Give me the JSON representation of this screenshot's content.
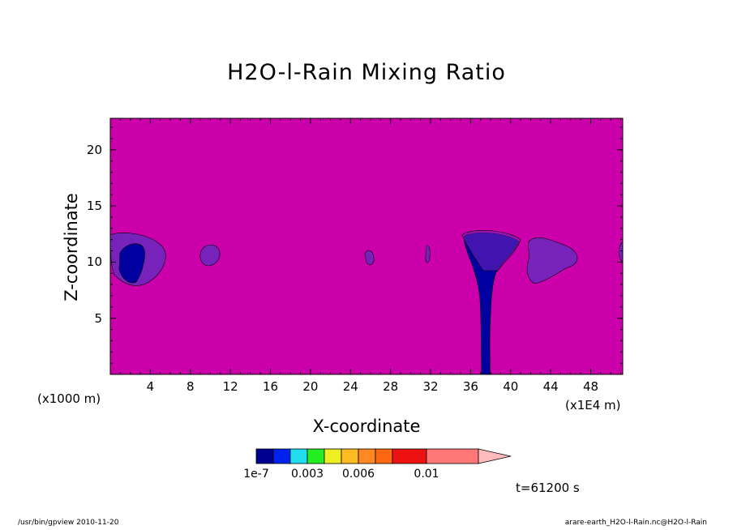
{
  "chart_data": {
    "type": "contour",
    "title": "H2O-l-Rain Mixing Ratio",
    "xlabel": "X-coordinate",
    "ylabel": "Z-coordinate",
    "x_unit_label": "(x1000 m)",
    "x_unit_label_right": "(x1E4 m)",
    "xlim": [
      0,
      51.2
    ],
    "ylim": [
      0,
      22.8
    ],
    "x_ticks": [
      "4",
      "8",
      "12",
      "16",
      "20",
      "24",
      "28",
      "32",
      "36",
      "40",
      "44",
      "48"
    ],
    "y_ticks": [
      "5",
      "10",
      "15",
      "20"
    ],
    "background_color": "#cc00aa",
    "colorbar": {
      "colors": [
        "#000090",
        "#0022ee",
        "#22ddee",
        "#22ee22",
        "#eeee22",
        "#ffbb22",
        "#ff8822",
        "#ff6611",
        "#ee1111",
        "#ff7777",
        "#ffbbbb"
      ],
      "labels": [
        "1e-7",
        "0.003",
        "0.006",
        "0.01"
      ]
    },
    "time_label": "t=61200 s",
    "features": [
      {
        "name": "purple-blob-left",
        "center_x": 2.5,
        "center_z": 10.3,
        "level": "low",
        "color": "#7722bb"
      },
      {
        "name": "blue-core-left",
        "center_x": 2.0,
        "center_z": 10.0,
        "level": "1e-7",
        "color": "#0000a0"
      },
      {
        "name": "purple-blob-10km",
        "center_x": 10.0,
        "center_z": 10.7,
        "level": "low",
        "color": "#7722bb"
      },
      {
        "name": "purple-blob-26km",
        "center_x": 25.7,
        "center_z": 10.3,
        "level": "low",
        "color": "#7722bb"
      },
      {
        "name": "purple-blob-32km",
        "center_x": 32.0,
        "center_z": 10.5,
        "level": "low",
        "color": "#7722bb"
      },
      {
        "name": "rain-column",
        "center_x": 37.5,
        "center_z": 6.0,
        "level": "1e-7",
        "color": "#0000a0"
      },
      {
        "name": "purple-blob-44km",
        "center_x": 43.5,
        "center_z": 10.5,
        "level": "low",
        "color": "#7722bb"
      }
    ]
  },
  "footer": {
    "left": "/usr/bin/gpview   2010-11-20",
    "right": "arare-earth_H2O-l-Rain.nc@H2O-l-Rain"
  }
}
